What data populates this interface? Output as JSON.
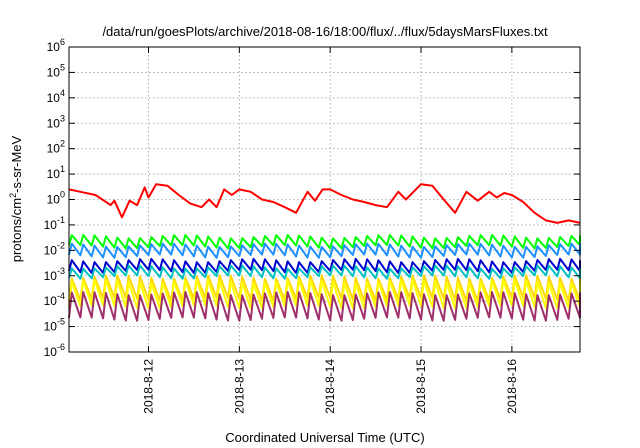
{
  "chart_data": {
    "type": "line",
    "title": "/data/run/goesPlots/archive/2018-08-16/18:00/flux/../flux/5daysMarsFluxes.txt",
    "xlabel": "Coordinated Universal Time (UTC)",
    "ylabel": "protons/cm²-s-sr-MeV",
    "ylabel_parts": {
      "pre": "protons/cm",
      "sup": "2",
      "post": "-s-sr-MeV"
    },
    "yscale": "log",
    "ylim": [
      1e-06,
      1000000.0
    ],
    "y_ticks": [
      {
        "base": "10",
        "exp": "-6",
        "value": 1e-06
      },
      {
        "base": "10",
        "exp": "-5",
        "value": 1e-05
      },
      {
        "base": "10",
        "exp": "-4",
        "value": 0.0001
      },
      {
        "base": "10",
        "exp": "-3",
        "value": 0.001
      },
      {
        "base": "10",
        "exp": "-2",
        "value": 0.01
      },
      {
        "base": "10",
        "exp": "-1",
        "value": 0.1
      },
      {
        "base": "10",
        "exp": "0",
        "value": 1
      },
      {
        "base": "10",
        "exp": "1",
        "value": 10
      },
      {
        "base": "10",
        "exp": "2",
        "value": 100
      },
      {
        "base": "10",
        "exp": "3",
        "value": 1000
      },
      {
        "base": "10",
        "exp": "4",
        "value": 10000
      },
      {
        "base": "10",
        "exp": "5",
        "value": 100000
      },
      {
        "base": "10",
        "exp": "6",
        "value": 1000000
      }
    ],
    "xlim": [
      "2018-08-11T03:00",
      "2018-08-16T18:00"
    ],
    "x_ticks": [
      {
        "label": "2018-8-12",
        "value": "2018-08-12T00:00"
      },
      {
        "label": "2018-8-13",
        "value": "2018-08-13T00:00"
      },
      {
        "label": "2018-8-14",
        "value": "2018-08-14T00:00"
      },
      {
        "label": "2018-8-15",
        "value": "2018-08-15T00:00"
      },
      {
        "label": "2018-8-16",
        "value": "2018-08-16T00:00"
      }
    ],
    "grid": true,
    "legend": "none",
    "series": [
      {
        "color": "#ff0000",
        "x": [
          "2018-08-11T03:00",
          "2018-08-11T06:00",
          "2018-08-11T10:00",
          "2018-08-11T14:00",
          "2018-08-11T15:00",
          "2018-08-11T17:00",
          "2018-08-11T19:00",
          "2018-08-11T21:00",
          "2018-08-11T23:00",
          "2018-08-12T00:00",
          "2018-08-12T02:00",
          "2018-08-12T05:00",
          "2018-08-12T08:00",
          "2018-08-12T11:00",
          "2018-08-12T14:00",
          "2018-08-12T16:00",
          "2018-08-12T18:00",
          "2018-08-12T20:00",
          "2018-08-12T22:00",
          "2018-08-13T00:00",
          "2018-08-13T03:00",
          "2018-08-13T06:00",
          "2018-08-13T09:00",
          "2018-08-13T12:00",
          "2018-08-13T15:00",
          "2018-08-13T18:00",
          "2018-08-13T20:00",
          "2018-08-13T22:00",
          "2018-08-14T00:00",
          "2018-08-14T03:00",
          "2018-08-14T06:00",
          "2018-08-14T09:00",
          "2018-08-14T12:00",
          "2018-08-14T15:00",
          "2018-08-14T18:00",
          "2018-08-14T20:00",
          "2018-08-14T22:00",
          "2018-08-15T00:00",
          "2018-08-15T03:00",
          "2018-08-15T06:00",
          "2018-08-15T09:00",
          "2018-08-15T12:00",
          "2018-08-15T15:00",
          "2018-08-15T18:00",
          "2018-08-15T20:00",
          "2018-08-15T22:00",
          "2018-08-16T00:00",
          "2018-08-16T03:00",
          "2018-08-16T06:00",
          "2018-08-16T09:00",
          "2018-08-16T12:00",
          "2018-08-16T15:00",
          "2018-08-16T18:00"
        ],
        "values": [
          2.5,
          2.0,
          1.5,
          0.6,
          0.9,
          0.2,
          0.9,
          0.6,
          3.0,
          1.2,
          4.0,
          3.5,
          1.5,
          0.7,
          0.5,
          1.0,
          0.5,
          2.5,
          1.5,
          2.5,
          2.0,
          1.0,
          0.8,
          0.5,
          0.3,
          2.0,
          0.9,
          2.5,
          2.5,
          1.5,
          1.0,
          0.8,
          0.6,
          0.5,
          2.0,
          1.0,
          2.0,
          4.0,
          3.5,
          1.0,
          0.3,
          2.0,
          0.9,
          2.0,
          1.2,
          1.8,
          1.5,
          0.8,
          0.3,
          0.15,
          0.12,
          0.15,
          0.12
        ]
      },
      {
        "color": "#00ff00",
        "x": [
          "2018-08-11T03:00",
          "2018-08-16T18:00"
        ],
        "values": [
          0.02,
          0.02
        ],
        "sawtooth": {
          "period_hours": 3,
          "high": 0.035,
          "low": 0.014
        }
      },
      {
        "color": "#1e90ff",
        "x": [
          "2018-08-11T03:00",
          "2018-08-16T18:00"
        ],
        "values": [
          0.01,
          0.01
        ],
        "sawtooth": {
          "period_hours": 3,
          "high": 0.016,
          "low": 0.006
        }
      },
      {
        "color": "#0000cd",
        "x": [
          "2018-08-11T03:00",
          "2018-08-16T18:00"
        ],
        "values": [
          0.003,
          0.003
        ],
        "sawtooth": {
          "period_hours": 3,
          "high": 0.004,
          "low": 0.0015
        }
      },
      {
        "color": "#00c0c0",
        "x": [
          "2018-08-11T03:00",
          "2018-08-16T18:00"
        ],
        "values": [
          0.0015,
          0.0015
        ],
        "sawtooth": {
          "period_hours": 3,
          "high": 0.0022,
          "low": 0.0009
        }
      },
      {
        "color": "#ffd700",
        "x": [
          "2018-08-11T03:00",
          "2018-08-16T18:00"
        ],
        "values": [
          0.0004,
          0.0004
        ],
        "sawtooth": {
          "period_hours": 3,
          "high": 0.0009,
          "low": 0.00012
        }
      },
      {
        "color": "#ffff00",
        "x": [
          "2018-08-11T03:00",
          "2018-08-16T18:00"
        ],
        "values": [
          0.0002,
          0.0002
        ],
        "sawtooth": {
          "period_hours": 3,
          "high": 0.0006,
          "low": 6e-05
        }
      },
      {
        "color": "#a0306b",
        "x": [
          "2018-08-11T03:00",
          "2018-08-16T18:00"
        ],
        "values": [
          5e-05,
          5e-05
        ],
        "sawtooth": {
          "period_hours": 3,
          "high": 0.0002,
          "low": 2e-05
        }
      }
    ]
  }
}
